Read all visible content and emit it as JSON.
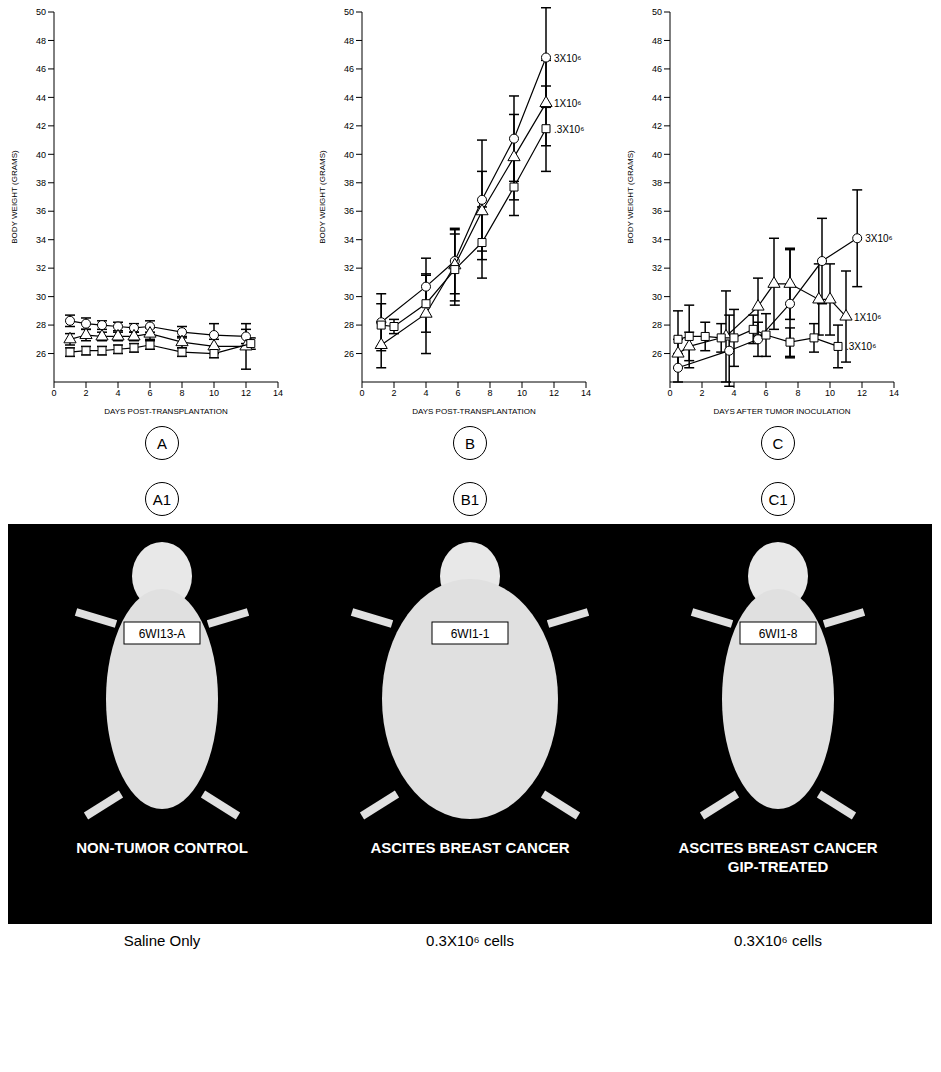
{
  "chart_data": [
    {
      "type": "line",
      "panel": "A",
      "x_label": "DAYS POST-TRANSPLANTATION",
      "y_label": "BODY WEIGHT (GRAMS)",
      "xlim": [
        0,
        14
      ],
      "xticks": [
        0,
        2,
        4,
        6,
        8,
        10,
        12,
        14
      ],
      "ylim": [
        24,
        50
      ],
      "yticks": [
        26,
        28,
        30,
        32,
        34,
        36,
        38,
        40,
        42,
        44,
        46,
        48,
        50
      ],
      "series": [
        {
          "marker": "circle",
          "color": "#000000",
          "x": [
            1,
            2,
            3,
            4,
            5,
            6,
            8,
            10,
            12
          ],
          "values": [
            28.3,
            28.1,
            28.0,
            27.9,
            27.8,
            27.9,
            27.5,
            27.3,
            27.2
          ],
          "errors": [
            0.4,
            0.4,
            0.3,
            0.3,
            0.3,
            0.4,
            0.4,
            0.8,
            0.5
          ]
        },
        {
          "marker": "triangle",
          "color": "#000000",
          "x": [
            1,
            2,
            3,
            4,
            5,
            6,
            8,
            10,
            12
          ],
          "values": [
            27.0,
            27.3,
            27.2,
            27.2,
            27.2,
            27.4,
            26.8,
            26.5,
            26.5
          ],
          "errors": [
            0.4,
            0.4,
            0.3,
            0.3,
            0.3,
            0.4,
            0.4,
            0.5,
            1.6
          ]
        },
        {
          "marker": "square",
          "color": "#000000",
          "x": [
            1,
            2,
            3,
            4,
            5,
            6,
            8,
            10,
            12.3
          ],
          "values": [
            26.1,
            26.2,
            26.2,
            26.3,
            26.4,
            26.6,
            26.1,
            26.0,
            26.7
          ],
          "errors": [
            0.3,
            0.3,
            0.3,
            0.3,
            0.3,
            0.3,
            0.3,
            0.3,
            0.4
          ]
        }
      ]
    },
    {
      "type": "line",
      "panel": "B",
      "x_label": "DAYS POST-TRANSPLANTATION",
      "y_label": "BODY WEIGHT (GRAMS)",
      "xlim": [
        0,
        14
      ],
      "xticks": [
        0,
        2,
        4,
        6,
        8,
        10,
        12,
        14
      ],
      "ylim": [
        24,
        50
      ],
      "yticks": [
        26,
        28,
        30,
        32,
        34,
        36,
        38,
        40,
        42,
        44,
        46,
        48,
        50
      ],
      "series": [
        {
          "name": "3X10⁶",
          "marker": "circle",
          "color": "#000000",
          "x": [
            1.2,
            4,
            5.8,
            7.5,
            9.5,
            11.5
          ],
          "values": [
            28.2,
            30.7,
            32.5,
            36.8,
            41.1,
            46.8
          ],
          "errors": [
            2.0,
            2.0,
            2.3,
            4.2,
            3.0,
            3.5
          ]
        },
        {
          "name": "1X10⁶",
          "marker": "triangle",
          "color": "#000000",
          "x": [
            1.2,
            4,
            5.8,
            7.5,
            9.5,
            11.5
          ],
          "values": [
            26.6,
            28.8,
            32.2,
            36.0,
            39.8,
            43.6
          ],
          "errors": [
            1.6,
            2.8,
            2.5,
            2.8,
            3.0,
            3.0
          ]
        },
        {
          "name": ".3X10⁶",
          "marker": "square",
          "color": "#000000",
          "x": [
            1.2,
            2,
            4,
            5.8,
            7.5,
            9.5,
            11.5
          ],
          "values": [
            28.0,
            27.9,
            29.5,
            31.9,
            33.8,
            37.7,
            41.8
          ],
          "errors": [
            1.5,
            0.5,
            2.0,
            2.5,
            2.5,
            2.0,
            3.0
          ]
        }
      ]
    },
    {
      "type": "line",
      "panel": "C",
      "x_label": "DAYS AFTER TUMOR INOCULATION",
      "y_label": "BODY WEIGHT (GRAMS)",
      "xlim": [
        0,
        14
      ],
      "xticks": [
        0,
        2,
        4,
        6,
        8,
        10,
        12,
        14
      ],
      "ylim": [
        24,
        50
      ],
      "yticks": [
        26,
        28,
        30,
        32,
        34,
        36,
        38,
        40,
        42,
        44,
        46,
        48,
        50
      ],
      "series": [
        {
          "name": "3X10⁶",
          "marker": "circle",
          "color": "#000000",
          "x": [
            0.5,
            3.7,
            5.5,
            7.5,
            9.5,
            11.7
          ],
          "values": [
            25.0,
            26.2,
            27.0,
            29.5,
            32.5,
            34.1
          ],
          "errors": [
            1.0,
            2.5,
            1.2,
            3.8,
            3.0,
            3.4
          ]
        },
        {
          "name": "1X10⁶",
          "marker": "triangle",
          "color": "#000000",
          "x": [
            0.5,
            1.2,
            3.5,
            5.5,
            6.5,
            7.5,
            9.3,
            10,
            11
          ],
          "values": [
            26.0,
            26.5,
            27.2,
            29.3,
            30.9,
            30.9,
            29.8,
            29.8,
            28.6
          ],
          "errors": [
            1.0,
            1.0,
            3.2,
            2.0,
            3.2,
            2.5,
            2.5,
            2.5,
            3.2
          ]
        },
        {
          "name": ".3X10⁶",
          "marker": "square",
          "color": "#000000",
          "x": [
            0.5,
            1.2,
            2.2,
            3.2,
            4,
            5.2,
            6,
            7.5,
            9,
            10.5
          ],
          "values": [
            27.0,
            27.2,
            27.2,
            27.1,
            27.1,
            27.7,
            27.3,
            26.8,
            27.1,
            26.5
          ],
          "errors": [
            2.0,
            2.2,
            1.0,
            1.0,
            2.0,
            1.0,
            1.5,
            1.0,
            1.0,
            1.5
          ]
        }
      ]
    }
  ],
  "photo": {
    "panels": [
      {
        "letter": "A1",
        "tag": "6WI13-A",
        "title": "NON-TUMOR CONTROL",
        "caption": "Saline Only"
      },
      {
        "letter": "B1",
        "tag": "6WI1-1",
        "title": "ASCITES BREAST CANCER",
        "caption": "0.3X10⁶ cells"
      },
      {
        "letter": "C1",
        "tag": "6WI1-8",
        "title": "ASCITES BREAST CANCER GIP-TREATED",
        "caption": "0.3X10⁶ cells"
      }
    ]
  }
}
